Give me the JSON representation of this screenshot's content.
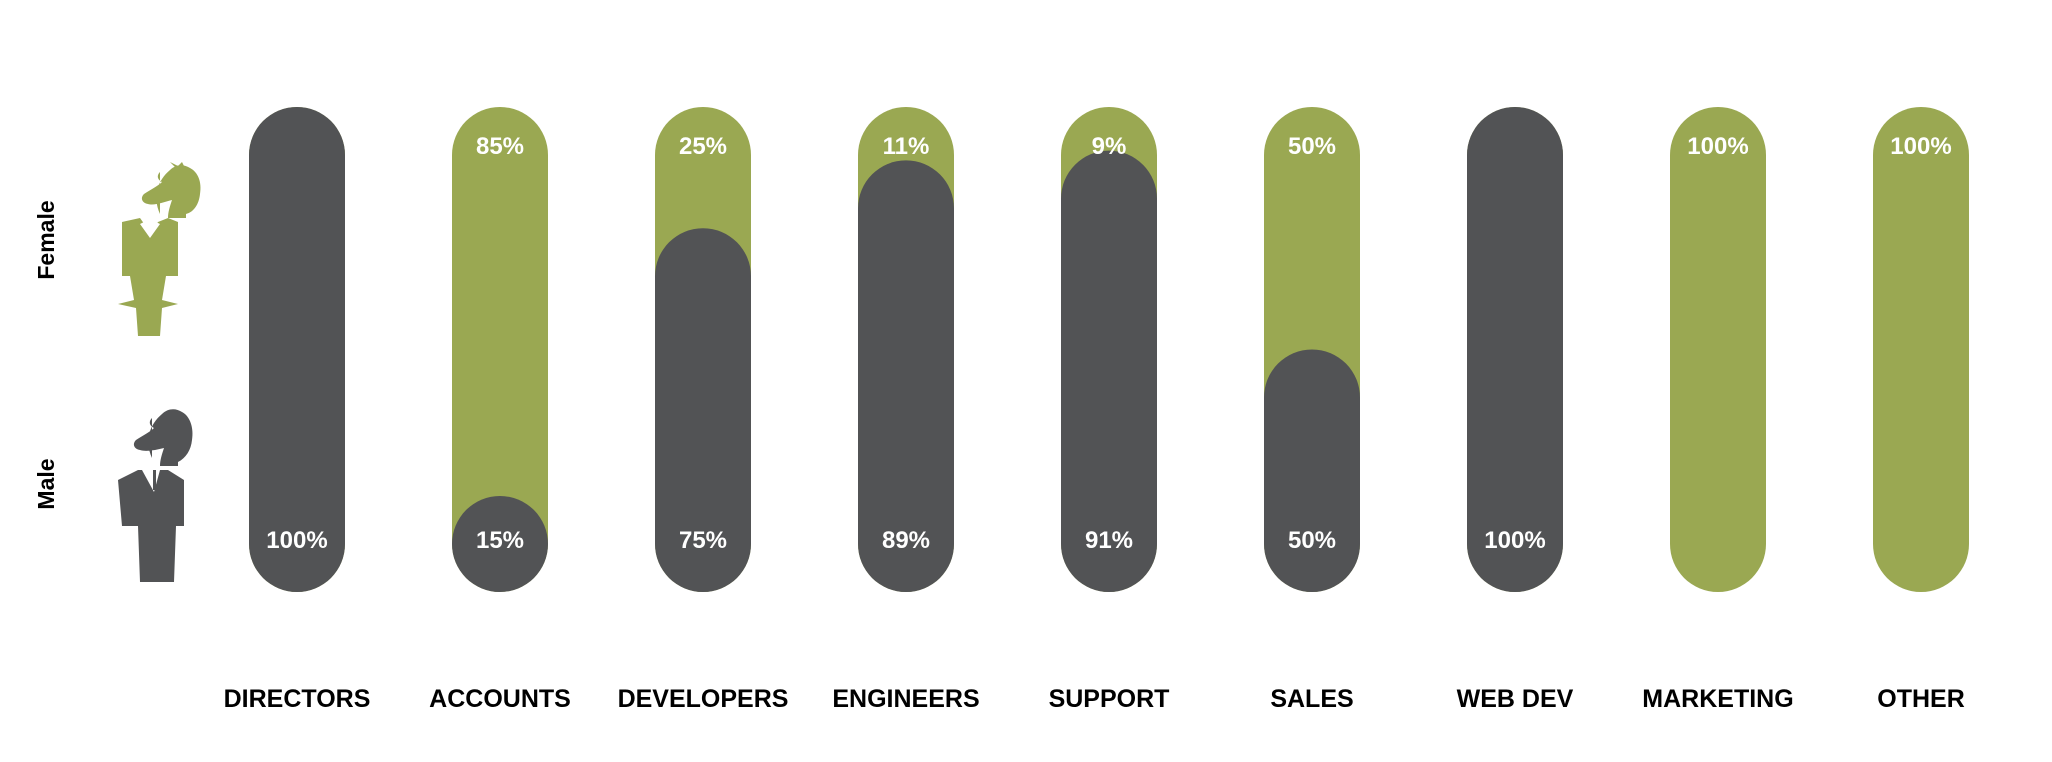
{
  "chart_data": {
    "type": "bar",
    "stacked": true,
    "orientation": "vertical",
    "categories": [
      "DIRECTORS",
      "ACCOUNTS",
      "DEVELOPERS",
      "ENGINEERS",
      "SUPPORT",
      "SALES",
      "WEB DEV",
      "MARKETING",
      "OTHER"
    ],
    "series": [
      {
        "name": "Male",
        "color": "#525355",
        "values": [
          100,
          15,
          75,
          89,
          91,
          50,
          100,
          0,
          0
        ],
        "labels": [
          "100%",
          "15%",
          "75%",
          "89%",
          "91%",
          "50%",
          "100%",
          "",
          ""
        ]
      },
      {
        "name": "Female",
        "color": "#9aa852",
        "values": [
          0,
          85,
          25,
          11,
          9,
          50,
          0,
          100,
          100
        ],
        "labels": [
          "",
          "85%",
          "25%",
          "11%",
          "9%",
          "50%",
          "",
          "100%",
          "100%"
        ]
      }
    ],
    "ylim": [
      0,
      100
    ],
    "legend": {
      "top_label": "Female",
      "bottom_label": "Male",
      "placement": "left"
    },
    "icons": {
      "female": "female-horse-icon",
      "male": "male-horse-icon"
    }
  }
}
